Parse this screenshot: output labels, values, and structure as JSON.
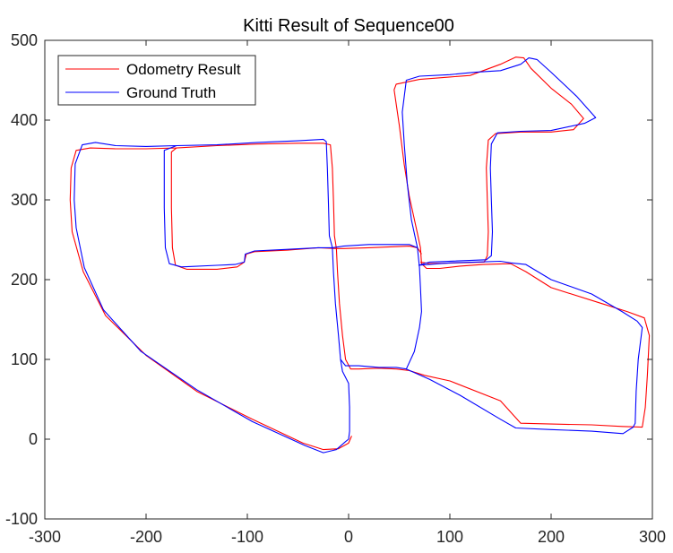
{
  "chart_data": {
    "type": "line",
    "title": "Kitti Result of Sequence00",
    "xlabel": "",
    "ylabel": "",
    "xlim": [
      -300,
      300
    ],
    "ylim": [
      -100,
      500
    ],
    "xticks": [
      -300,
      -200,
      -100,
      0,
      100,
      200,
      300
    ],
    "yticks": [
      -100,
      0,
      100,
      200,
      300,
      400,
      500
    ],
    "grid": false,
    "legend_position": "top-left",
    "series": [
      {
        "name": "Odometry Result",
        "color": "#ff0000",
        "segments": [
          [
            [
              3,
              4
            ],
            [
              0,
              -5
            ],
            [
              -10,
              -12
            ],
            [
              -25,
              -13
            ],
            [
              -45,
              -5
            ],
            [
              -95,
              25
            ],
            [
              -150,
              60
            ],
            [
              -200,
              105
            ],
            [
              -240,
              155
            ],
            [
              -262,
              210
            ],
            [
              -273,
              260
            ],
            [
              -275,
              300
            ],
            [
              -274,
              340
            ],
            [
              -269,
              362
            ],
            [
              -255,
              365
            ],
            [
              -230,
              364
            ],
            [
              -200,
              364
            ],
            [
              -170,
              365
            ],
            [
              -130,
              368
            ],
            [
              -90,
              370
            ],
            [
              -50,
              371
            ],
            [
              -25,
              371
            ],
            [
              -18,
              369
            ],
            [
              -16,
              340
            ],
            [
              -15,
              300
            ],
            [
              -14,
              255
            ],
            [
              -12,
              239
            ],
            [
              -11,
              210
            ],
            [
              -9,
              170
            ],
            [
              -6,
              130
            ],
            [
              -3,
              100
            ],
            [
              2,
              88
            ],
            [
              10,
              88
            ],
            [
              30,
              89
            ],
            [
              47,
              88
            ],
            [
              60,
              86
            ],
            [
              75,
              80
            ],
            [
              100,
              73
            ],
            [
              150,
              48
            ],
            [
              170,
              20
            ],
            [
              200,
              19
            ],
            [
              240,
              18
            ],
            [
              270,
              16
            ],
            [
              290,
              15
            ],
            [
              293,
              40
            ],
            [
              295,
              80
            ],
            [
              297,
              130
            ],
            [
              292,
              152
            ],
            [
              275,
              160
            ],
            [
              250,
              170
            ],
            [
              200,
              190
            ],
            [
              175,
              210
            ],
            [
              160,
              220
            ],
            [
              133,
              219
            ],
            [
              110,
              217
            ],
            [
              90,
              214
            ],
            [
              77,
              214
            ],
            [
              72,
              220
            ],
            [
              71,
              240
            ],
            [
              68,
              258
            ],
            [
              60,
              304
            ],
            [
              55,
              344
            ],
            [
              50,
              394
            ],
            [
              45,
              438
            ],
            [
              47,
              445
            ],
            [
              70,
              451
            ],
            [
              100,
              454
            ],
            [
              120,
              456
            ],
            [
              150,
              470
            ],
            [
              165,
              479
            ],
            [
              173,
              478
            ],
            [
              180,
              465
            ],
            [
              200,
              440
            ],
            [
              220,
              420
            ],
            [
              232,
              402
            ],
            [
              222,
              388
            ],
            [
              200,
              385
            ],
            [
              170,
              385
            ],
            [
              145,
              383
            ],
            [
              138,
              375
            ],
            [
              136,
              340
            ],
            [
              137,
              300
            ],
            [
              138,
              260
            ],
            [
              137,
              230
            ],
            [
              134,
              222
            ],
            [
              80,
              220
            ],
            [
              71,
              222
            ]
          ],
          [
            [
              -12,
              239
            ],
            [
              -5,
              239
            ],
            [
              20,
              240
            ],
            [
              60,
              242
            ],
            [
              68,
              240
            ],
            [
              72,
              232
            ]
          ],
          [
            [
              -170,
              365
            ],
            [
              -175,
              360
            ],
            [
              -175,
              330
            ],
            [
              -175,
              290
            ],
            [
              -174,
              240
            ],
            [
              -171,
              218
            ],
            [
              -160,
              213
            ],
            [
              -130,
              213
            ],
            [
              -110,
              216
            ],
            [
              -103,
              222
            ],
            [
              -101,
              232
            ],
            [
              -93,
              235
            ],
            [
              -60,
              237
            ],
            [
              -30,
              240
            ],
            [
              -12,
              239
            ]
          ]
        ]
      },
      {
        "name": "Ground Truth",
        "color": "#0000ff",
        "segments": [
          [
            [
              0,
              0
            ],
            [
              -3,
              -3
            ],
            [
              -12,
              -13
            ],
            [
              -25,
              -17
            ],
            [
              -43,
              -8
            ],
            [
              -95,
              22
            ],
            [
              -150,
              62
            ],
            [
              -205,
              110
            ],
            [
              -242,
              162
            ],
            [
              -261,
              215
            ],
            [
              -269,
              265
            ],
            [
              -271,
              300
            ],
            [
              -270,
              345
            ],
            [
              -263,
              369
            ],
            [
              -250,
              372
            ],
            [
              -230,
              368
            ],
            [
              -200,
              367
            ],
            [
              -170,
              368
            ],
            [
              -130,
              369
            ],
            [
              -90,
              372
            ],
            [
              -50,
              374
            ],
            [
              -25,
              376
            ],
            [
              -22,
              373
            ],
            [
              -21,
              340
            ],
            [
              -20,
              300
            ],
            [
              -19,
              255
            ],
            [
              -16,
              240
            ],
            [
              -15,
              210
            ],
            [
              -13,
              170
            ],
            [
              -10,
              130
            ],
            [
              -8,
              100
            ],
            [
              -6,
              85
            ],
            [
              0,
              70
            ],
            [
              1,
              40
            ],
            [
              1,
              10
            ],
            [
              0,
              0
            ]
          ],
          [
            [
              -8,
              100
            ],
            [
              -3,
              92
            ],
            [
              10,
              92
            ],
            [
              30,
              90
            ],
            [
              47,
              90
            ],
            [
              57,
              88
            ],
            [
              65,
              110
            ],
            [
              70,
              140
            ],
            [
              72,
              160
            ],
            [
              71,
              190
            ],
            [
              70,
              215
            ],
            [
              68,
              240
            ],
            [
              62,
              275
            ],
            [
              58,
              320
            ],
            [
              55,
              370
            ],
            [
              53,
              410
            ],
            [
              57,
              450
            ],
            [
              70,
              455
            ],
            [
              100,
              457
            ],
            [
              125,
              460
            ],
            [
              150,
              462
            ],
            [
              170,
              470
            ],
            [
              178,
              478
            ],
            [
              186,
              476
            ],
            [
              200,
              460
            ],
            [
              225,
              430
            ],
            [
              244,
              403
            ],
            [
              233,
              396
            ],
            [
              200,
              387
            ],
            [
              170,
              386
            ],
            [
              147,
              384
            ],
            [
              141,
              370
            ],
            [
              140,
              340
            ],
            [
              141,
              300
            ],
            [
              142,
              260
            ],
            [
              141,
              230
            ],
            [
              136,
              225
            ],
            [
              80,
              222
            ],
            [
              69,
              218
            ]
          ],
          [
            [
              69,
              218
            ],
            [
              100,
              221
            ],
            [
              125,
              222
            ],
            [
              150,
              223
            ],
            [
              160,
              221
            ],
            [
              175,
              219
            ],
            [
              200,
              200
            ],
            [
              240,
              182
            ],
            [
              270,
              160
            ],
            [
              285,
              148
            ],
            [
              290,
              140
            ],
            [
              289,
              130
            ],
            [
              286,
              100
            ],
            [
              284,
              60
            ],
            [
              283,
              20
            ],
            [
              281,
              15
            ],
            [
              271,
              7
            ],
            [
              240,
              10
            ],
            [
              200,
              12
            ],
            [
              165,
              14
            ],
            [
              150,
              25
            ],
            [
              110,
              55
            ],
            [
              80,
              75
            ],
            [
              57,
              88
            ]
          ],
          [
            [
              -16,
              240
            ],
            [
              -5,
              242
            ],
            [
              20,
              244
            ],
            [
              60,
              244
            ],
            [
              68,
              240
            ]
          ],
          [
            [
              -170,
              368
            ],
            [
              -182,
              362
            ],
            [
              -182,
              330
            ],
            [
              -182,
              290
            ],
            [
              -181,
              240
            ],
            [
              -177,
              220
            ],
            [
              -165,
              216
            ],
            [
              -130,
              218
            ],
            [
              -112,
              219
            ],
            [
              -103,
              222
            ],
            [
              -102,
              232
            ],
            [
              -93,
              236
            ],
            [
              -60,
              238
            ],
            [
              -30,
              240
            ],
            [
              -16,
              240
            ]
          ]
        ]
      }
    ]
  }
}
